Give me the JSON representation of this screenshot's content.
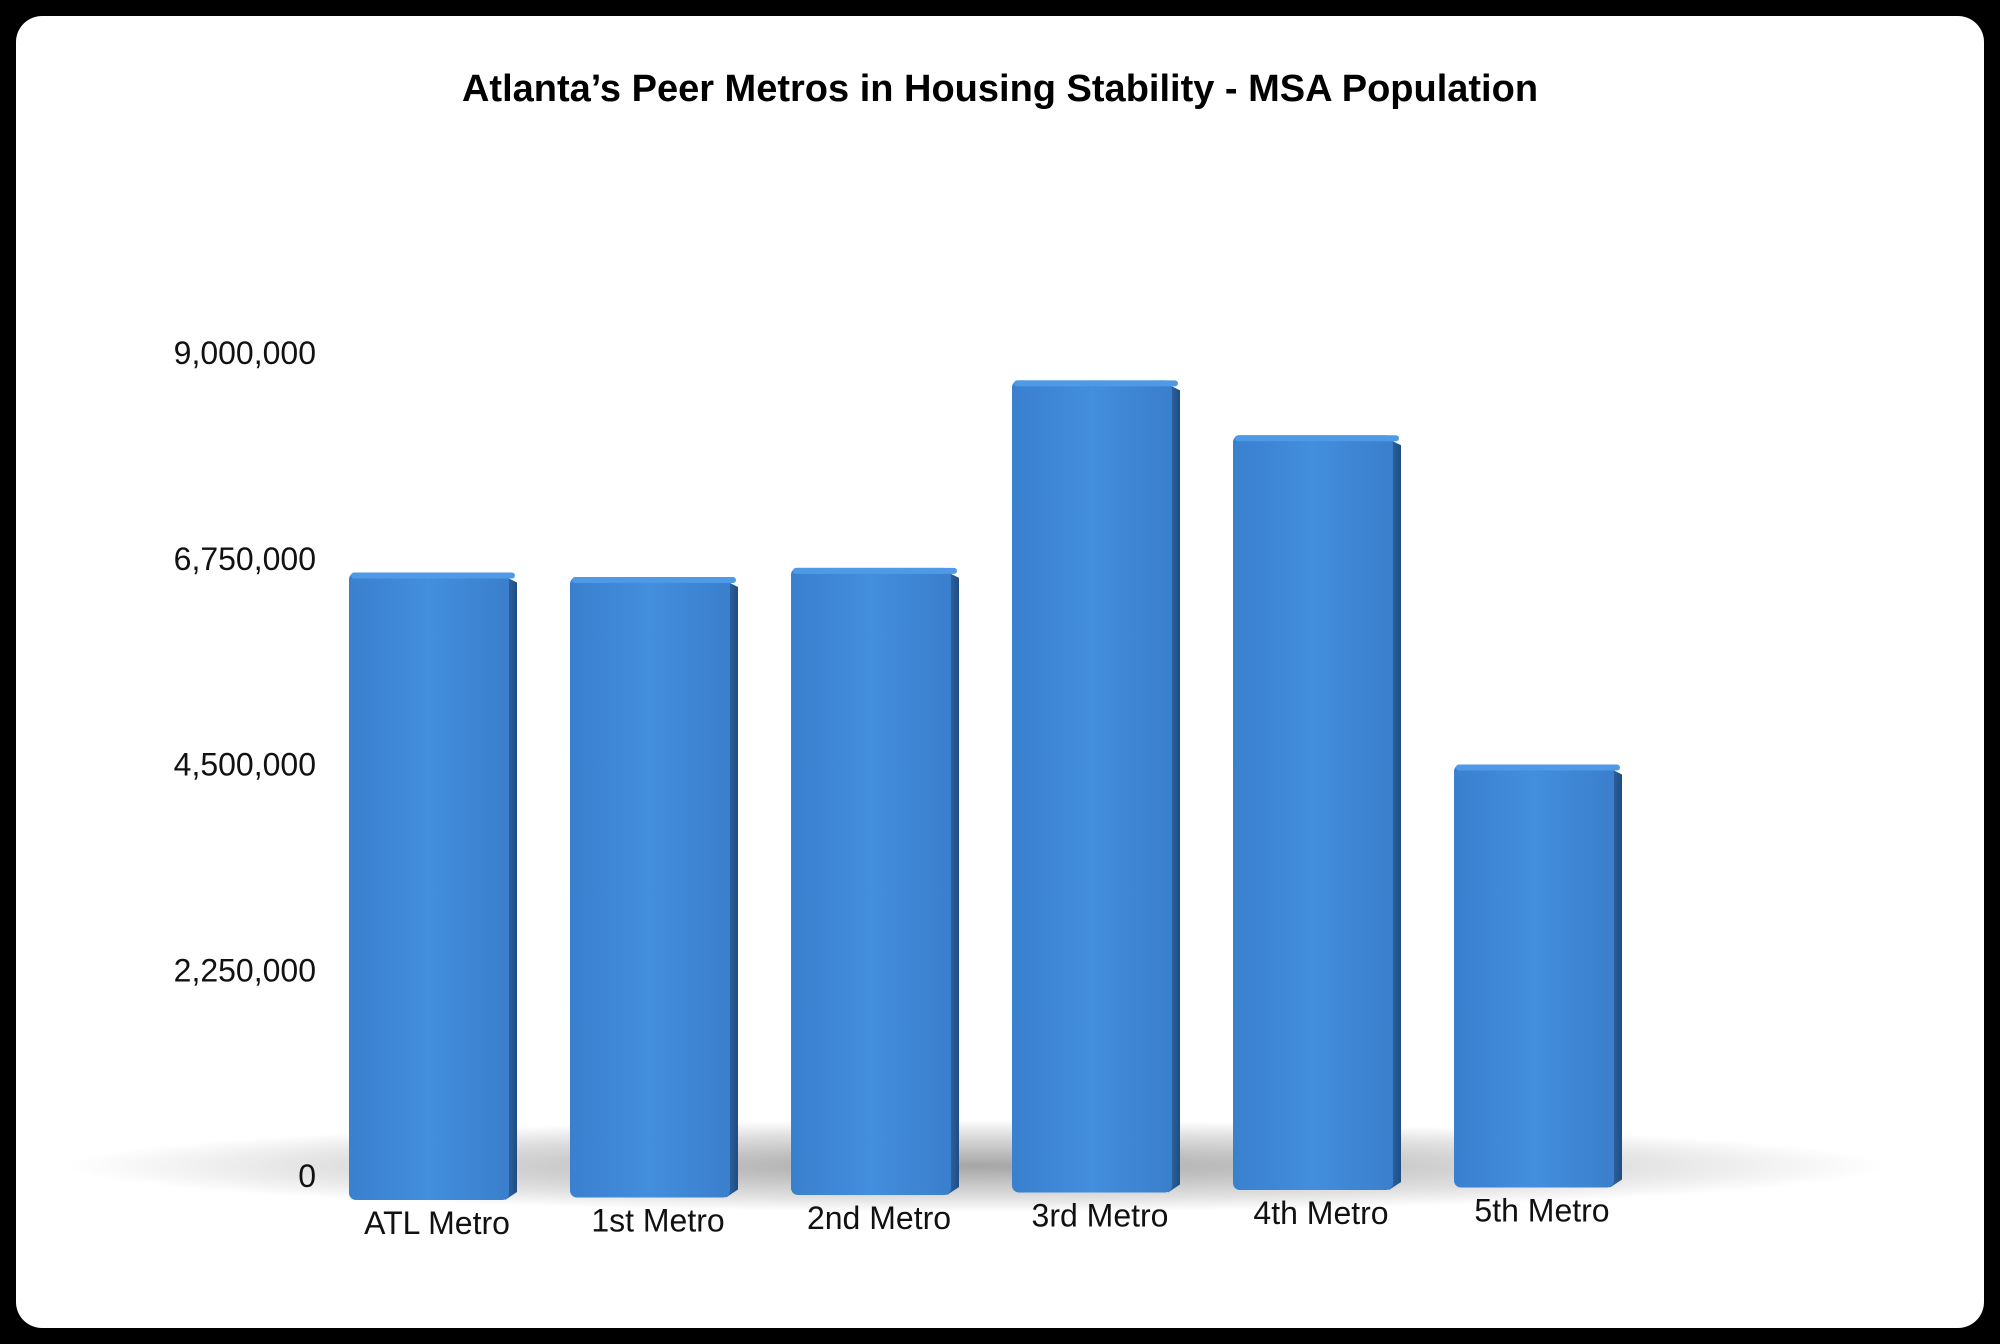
{
  "chart_data": {
    "type": "bar",
    "title": "Atlanta’s Peer Metros in Housing Stability - MSA Population",
    "xlabel": "",
    "ylabel": "",
    "categories": [
      "ATL Metro",
      "1st Metro",
      "2nd Metro",
      "3rd Metro",
      "4th Metro",
      "5th Metro"
    ],
    "series": [
      {
        "name": "MSA Population",
        "values": [
          6600000,
          6550000,
          6650000,
          8700000,
          8100000,
          4500000
        ]
      }
    ],
    "ylim": [
      0,
      9000000
    ],
    "yticks": [
      0,
      2250000,
      4500000,
      6750000,
      9000000
    ],
    "ytick_labels": [
      "0",
      "2,250,000",
      "4,500,000",
      "6,750,000",
      "9,000,000"
    ],
    "grid": false,
    "legend": "none",
    "bar_color": "#3d86d6"
  }
}
